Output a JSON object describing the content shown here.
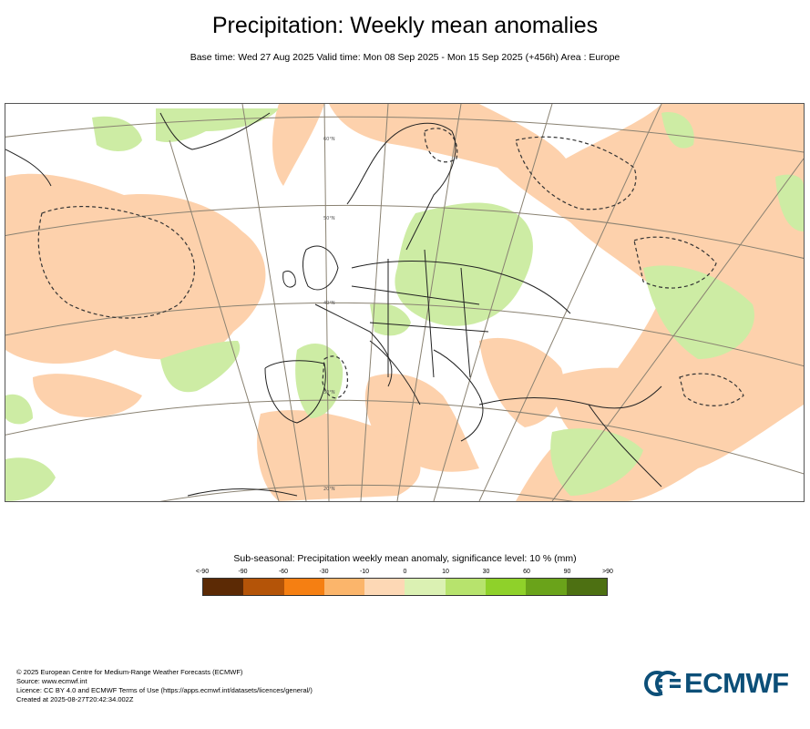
{
  "header": {
    "title": "Precipitation: Weekly mean anomalies",
    "subtitle": "Base time: Wed 27 Aug 2025 Valid time: Mon 08 Sep 2025 - Mon 15 Sep 2025 (+456h) Area : Europe"
  },
  "map": {
    "grid_labels": [
      "60°N",
      "50°N",
      "40°N",
      "30°N",
      "20°N"
    ],
    "colors": {
      "dry": "#fdd1ac",
      "wet": "#cdeca4",
      "land_outline": "#222222",
      "graticule": "#8a8272"
    }
  },
  "legend": {
    "title": "Sub-seasonal: Precipitation weekly mean anomaly, significance level: 10 % (mm)",
    "ticks": [
      "<-90",
      "-90",
      "-60",
      "-30",
      "-10",
      "0",
      "10",
      "30",
      "60",
      "90",
      ">90"
    ],
    "colors": [
      "#5c2a05",
      "#b45408",
      "#f57f12",
      "#fbb56b",
      "#fdd8b5",
      "#dbf1b3",
      "#b7e36d",
      "#8fd12a",
      "#6aa31a",
      "#4d7012"
    ]
  },
  "footer": {
    "lines": [
      "© 2025 European Centre for Medium-Range Weather Forecasts (ECMWF)",
      "Source: www.ecmwf.int",
      "Licence: CC BY 4.0 and ECMWF Terms of Use (https://apps.ecmwf.int/datasets/licences/general/)",
      "Created at 2025-08-27T20:42:34.002Z"
    ]
  },
  "logo": {
    "text": "ECMWF"
  }
}
